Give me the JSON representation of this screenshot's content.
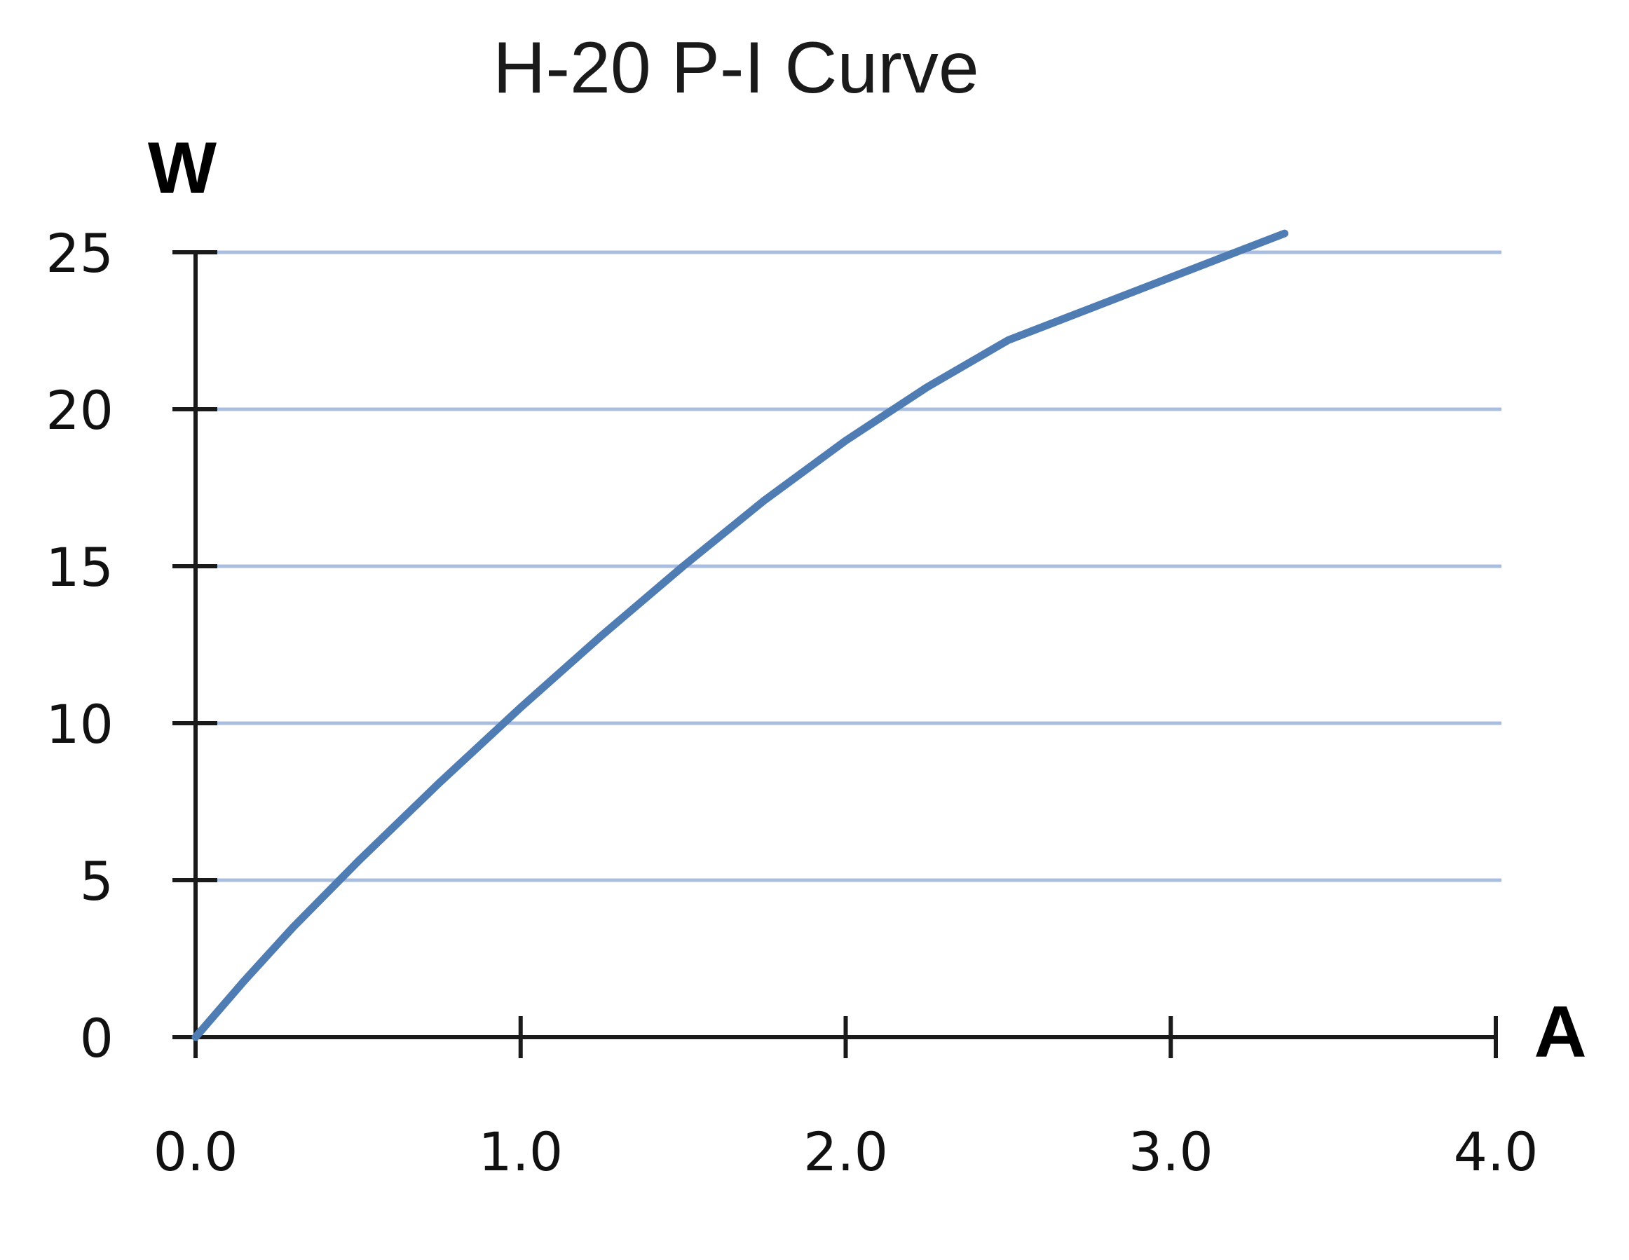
{
  "chart_data": {
    "type": "line",
    "title": "H-20 P-I Curve",
    "xlabel": "A",
    "ylabel": "W",
    "xlim": [
      0,
      4
    ],
    "ylim": [
      0,
      25
    ],
    "x_ticks": [
      "0.0",
      "1.0",
      "2.0",
      "3.0",
      "4.0"
    ],
    "y_ticks": [
      "0",
      "5",
      "10",
      "15",
      "20",
      "25"
    ],
    "grid": "horizontal",
    "legend": "none",
    "series": [
      {
        "color": "#4f7cb3",
        "x": [
          0.0,
          0.15,
          0.3,
          0.5,
          0.75,
          1.0,
          1.25,
          1.5,
          1.75,
          2.0,
          2.25,
          2.5,
          2.75,
          3.0,
          3.25,
          3.35
        ],
        "y": [
          0.0,
          1.8,
          3.5,
          5.6,
          8.1,
          10.5,
          12.8,
          15.0,
          17.1,
          19.0,
          20.7,
          22.2,
          23.2,
          24.2,
          25.2,
          25.6
        ]
      }
    ],
    "colors": {
      "gridline": "#a9bde0",
      "axis": "#1a1a1a",
      "line": "#4f7cb3"
    }
  }
}
